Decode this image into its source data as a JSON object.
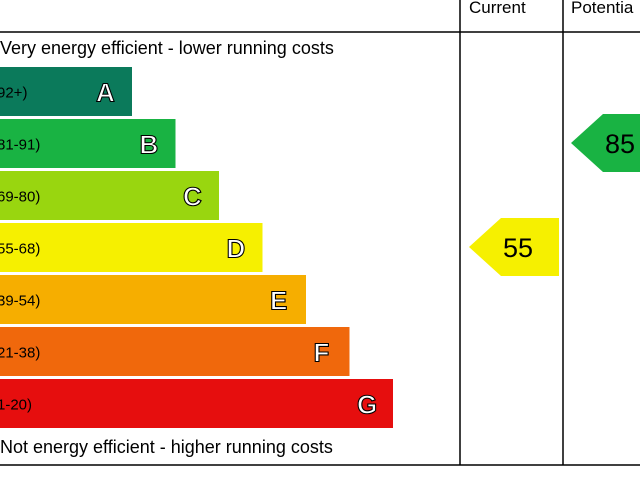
{
  "header": {
    "current_label": "Current",
    "potential_label": "Potentia"
  },
  "captions": {
    "top": "Very energy efficient - lower running costs",
    "bottom": "Not energy efficient - higher running costs"
  },
  "chart_data": {
    "type": "bar",
    "title": "",
    "categories": [
      "A",
      "B",
      "C",
      "D",
      "E",
      "F",
      "G"
    ],
    "ranges": [
      "92+)",
      "81-91)",
      "69-80)",
      "55-68)",
      "39-54)",
      "21-38)",
      "1-20)"
    ],
    "colors": [
      "#0b7a5b",
      "#19b343",
      "#99d60f",
      "#f6f000",
      "#f6ae00",
      "#f0680c",
      "#e60e0e"
    ],
    "current": {
      "value": 55,
      "band": "D",
      "color": "#f6f000"
    },
    "potential": {
      "value": 85,
      "band": "B",
      "color": "#19b343"
    }
  }
}
